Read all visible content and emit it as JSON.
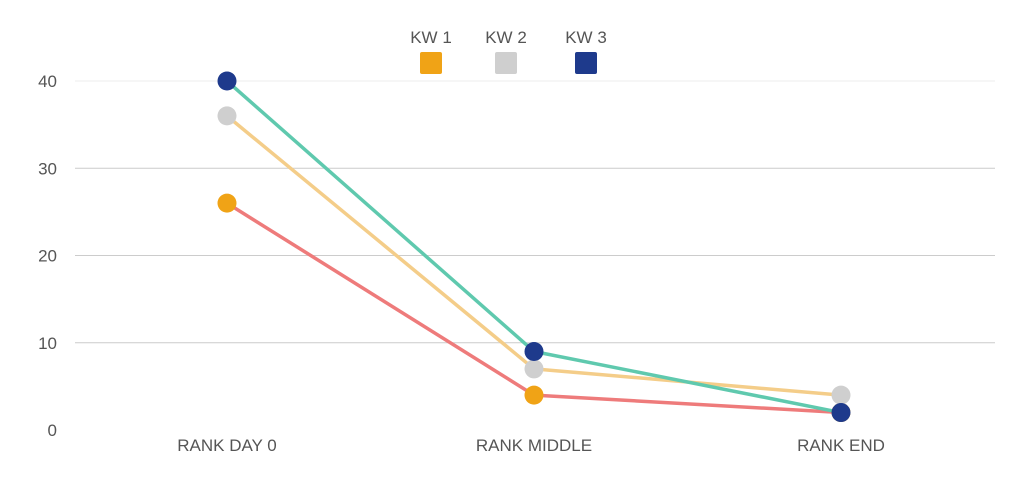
{
  "chart_data": {
    "type": "line",
    "categories": [
      "RANK DAY 0",
      "RANK MIDDLE",
      "RANK END"
    ],
    "ylim": [
      0,
      40
    ],
    "yticks": [
      0,
      10,
      20,
      30,
      40
    ],
    "grid": true,
    "legend_position": "top-center",
    "series": [
      {
        "name": "KW 1",
        "values": [
          26,
          4,
          2
        ],
        "marker_color": "#f0a316",
        "line_color": "#ee7b7b"
      },
      {
        "name": "KW 2",
        "values": [
          36,
          7,
          4
        ],
        "marker_color": "#cfcfcf",
        "line_color": "#f4cd89"
      },
      {
        "name": "KW 3",
        "values": [
          40,
          9,
          2
        ],
        "marker_color": "#1e3a8c",
        "line_color": "#5fc9ae"
      }
    ]
  }
}
